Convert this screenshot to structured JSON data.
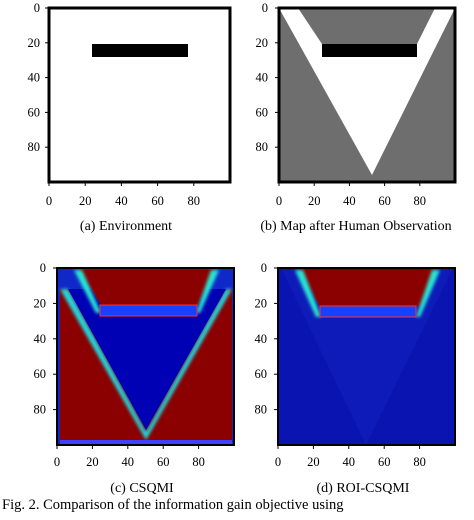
{
  "figure": {
    "fig_caption": "Fig. 2.  Comparison of the information gain objective using"
  },
  "panels": [
    {
      "id": "a",
      "caption": "(a) Environment"
    },
    {
      "id": "b",
      "caption": "(b) Map after Human Observation"
    },
    {
      "id": "c",
      "caption": "(c) CSQMI"
    },
    {
      "id": "d",
      "caption": "(d) ROI-CSQMI"
    }
  ],
  "axes": {
    "xlim": [
      0,
      100
    ],
    "ylim": [
      100,
      0
    ],
    "x_ticks": [
      "0",
      "20",
      "40",
      "60",
      "80"
    ],
    "y_ticks": [
      "0",
      "20",
      "40",
      "60",
      "80"
    ]
  },
  "chart_data": [
    {
      "type": "heatmap",
      "panel": "a",
      "grid": "100x100 occupancy",
      "xlim": [
        0,
        100
      ],
      "ylim": [
        100,
        0
      ],
      "regions": [
        {
          "label": "free",
          "value": 1,
          "color": "#ffffff"
        },
        {
          "label": "obstacle",
          "value": 0,
          "color": "#000000",
          "x": [
            24,
            77
          ],
          "y": [
            24,
            30
          ]
        }
      ]
    },
    {
      "type": "heatmap",
      "panel": "b",
      "grid": "100x100 occupancy",
      "xlim": [
        0,
        100
      ],
      "ylim": [
        100,
        0
      ],
      "regions": [
        {
          "label": "unknown",
          "color": "#6e6e6e"
        },
        {
          "label": "observed free (V-shaped field of view from [50,97])",
          "color": "#ffffff"
        },
        {
          "label": "occluded region behind obstacle",
          "color": "#6e6e6e",
          "x": [
            23,
            78
          ],
          "y": [
            0,
            24
          ]
        },
        {
          "label": "obstacle",
          "color": "#000000",
          "x": [
            24,
            77
          ],
          "y": [
            24,
            30
          ]
        }
      ]
    },
    {
      "type": "heatmap",
      "panel": "c",
      "colormap": "jet",
      "xlim": [
        0,
        100
      ],
      "ylim": [
        100,
        0
      ],
      "regions": [
        {
          "label": "high information gain (unknown cells)",
          "color": "#8b0000"
        },
        {
          "label": "low information gain (observed cells)",
          "color": "#0000b4"
        },
        {
          "label": "obstacle band",
          "color": "#1a40ff",
          "x": [
            24,
            77
          ],
          "y": [
            21,
            28
          ]
        }
      ]
    },
    {
      "type": "heatmap",
      "panel": "d",
      "colormap": "jet",
      "xlim": [
        0,
        100
      ],
      "ylim": [
        100,
        0
      ],
      "regions": [
        {
          "label": "high information gain (region of interest)",
          "color": "#8b0000",
          "x": [
            10,
            88
          ],
          "y": [
            2,
            21
          ]
        },
        {
          "label": "low information gain",
          "color": "#0000b4"
        },
        {
          "label": "obstacle band",
          "color": "#1a40ff",
          "x": [
            24,
            77
          ],
          "y": [
            21,
            28
          ]
        }
      ]
    }
  ]
}
